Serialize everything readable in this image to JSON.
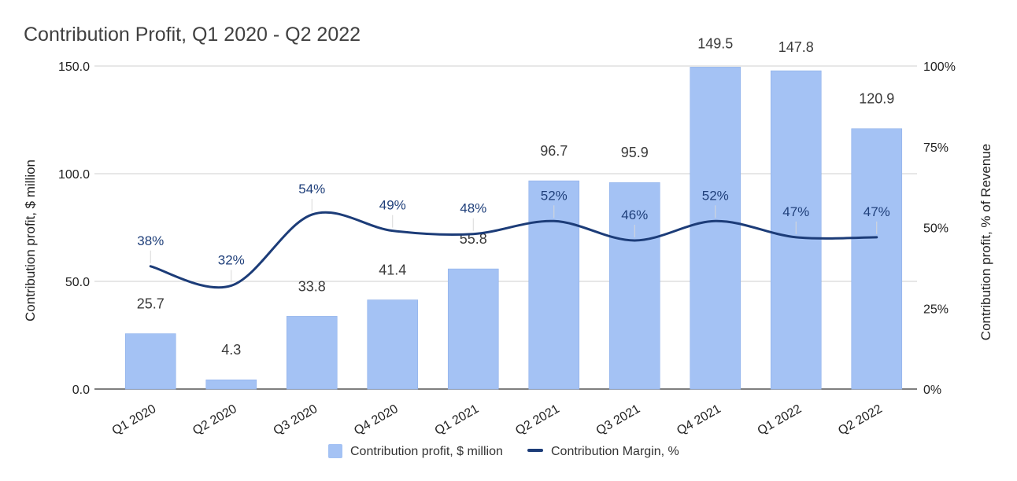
{
  "chart_data": {
    "type": "bar",
    "title": "Contribution Profit, Q1 2020 - Q2 2022",
    "categories": [
      "Q1 2020",
      "Q2 2020",
      "Q3 2020",
      "Q4 2020",
      "Q1 2021",
      "Q2 2021",
      "Q3 2021",
      "Q4 2021",
      "Q1 2022",
      "Q2 2022"
    ],
    "series": [
      {
        "name": "Contribution profit, $ million",
        "type": "bar",
        "axis": "left",
        "color": "#a4c2f4",
        "values": [
          25.7,
          4.3,
          33.8,
          41.4,
          55.8,
          96.7,
          95.9,
          149.5,
          147.8,
          120.9
        ],
        "labels": [
          "25.7",
          "4.3",
          "33.8",
          "41.4",
          "55.8",
          "96.7",
          "95.9",
          "149.5",
          "147.8",
          "120.9"
        ]
      },
      {
        "name": "Contribution Margin, %",
        "type": "line",
        "axis": "right",
        "color": "#1c3c78",
        "values": [
          38,
          32,
          54,
          49,
          48,
          52,
          46,
          52,
          47,
          47
        ],
        "labels": [
          "38%",
          "32%",
          "54%",
          "49%",
          "48%",
          "52%",
          "46%",
          "52%",
          "47%",
          "47%"
        ]
      }
    ],
    "ylabel": "Contribution profit, $ million",
    "ylabel_right": "Contribution profit, % of Revenue",
    "ylim": [
      0,
      150
    ],
    "ylim_right": [
      0,
      100
    ],
    "yticks": [
      "0.0",
      "50.0",
      "100.0",
      "150.0"
    ],
    "yticks_right": [
      "0%",
      "25%",
      "50%",
      "75%",
      "100%"
    ],
    "grid": true,
    "legend_position": "bottom"
  }
}
